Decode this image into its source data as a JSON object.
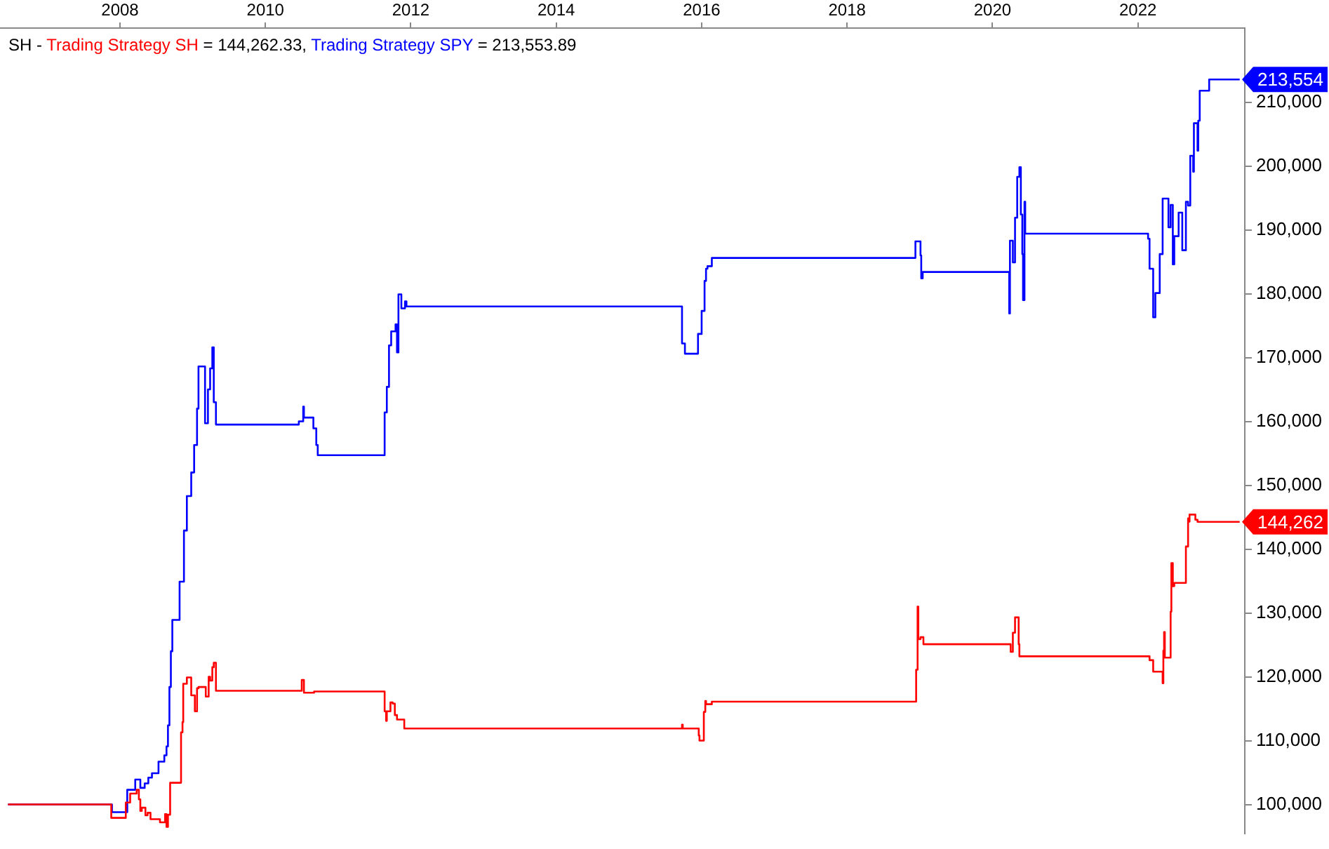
{
  "chart_data": {
    "type": "step",
    "title": "SH -",
    "legend": "top left",
    "grid": false,
    "annotations": [
      "= 144,262.33,",
      "= 213,553.89"
    ],
    "xlim": [
      2006.35,
      2023.47
    ],
    "xticks": [
      2008,
      2010,
      2012,
      2014,
      2016,
      2018,
      2020,
      2022
    ],
    "ylim": [
      95400,
      221600
    ],
    "yticks": [
      {
        "value": 100000,
        "label": "100,000"
      },
      {
        "value": 110000,
        "label": "110,000"
      },
      {
        "value": 120000,
        "label": "120,000"
      },
      {
        "value": 130000,
        "label": "130,000"
      },
      {
        "value": 140000,
        "label": "140,000"
      },
      {
        "value": 150000,
        "label": "150,000"
      },
      {
        "value": 160000,
        "label": "160,000"
      },
      {
        "value": 170000,
        "label": "170,000"
      },
      {
        "value": 180000,
        "label": "180,000"
      },
      {
        "value": 190000,
        "label": "190,000"
      },
      {
        "value": 200000,
        "label": "200,000"
      },
      {
        "value": 210000,
        "label": "210,000"
      }
    ],
    "series": [
      {
        "name": "Trading Strategy SH",
        "color": "#ff0000",
        "x": [
          2006.46,
          2007.88,
          2008.08,
          2008.14,
          2008.23,
          2008.26,
          2008.28,
          2008.3,
          2008.35,
          2008.38,
          2008.42,
          2008.55,
          2008.62,
          2008.64,
          2008.66,
          2008.69,
          2008.84,
          2008.86,
          2008.87,
          2008.92,
          2008.98,
          2009.03,
          2009.06,
          2009.08,
          2009.18,
          2009.22,
          2009.24,
          2009.27,
          2009.29,
          2009.32,
          2010.5,
          2010.53,
          2010.67,
          2011.64,
          2011.66,
          2011.67,
          2011.72,
          2011.75,
          2011.78,
          2011.81,
          2011.91,
          2015.73,
          2015.74,
          2015.96,
          2015.97,
          2016.03,
          2016.05,
          2016.06,
          2016.14,
          2018.95,
          2018.97,
          2018.98,
          2019.01,
          2019.05,
          2020.25,
          2020.28,
          2020.31,
          2020.36,
          2020.37,
          2022.16,
          2022.21,
          2022.34,
          2022.35,
          2022.36,
          2022.37,
          2022.45,
          2022.46,
          2022.48,
          2022.5,
          2022.66,
          2022.69,
          2022.7,
          2022.71,
          2022.79,
          2022.82,
          2023.4
        ],
        "values": [
          100000,
          97900,
          100300,
          101700,
          102300,
          100800,
          99000,
          99500,
          98300,
          98700,
          97700,
          97200,
          98500,
          96500,
          98400,
          103400,
          111300,
          112900,
          118900,
          119900,
          117100,
          114600,
          118200,
          118400,
          116900,
          120000,
          119400,
          121500,
          122200,
          117800,
          119500,
          117500,
          117700,
          114600,
          113100,
          114600,
          116000,
          115800,
          114000,
          113300,
          111900,
          112500,
          111900,
          110800,
          110000,
          114500,
          116200,
          115700,
          116100,
          121100,
          131000,
          125900,
          126200,
          125100,
          123900,
          126900,
          129300,
          125100,
          123200,
          122600,
          120800,
          119000,
          124100,
          127000,
          123000,
          130200,
          137800,
          134200,
          134700,
          140400,
          144800,
          144300,
          145400,
          144600,
          144262,
          144262
        ],
        "value_labels": [
          null,
          null,
          null,
          null,
          null,
          null,
          null,
          null,
          null,
          null,
          null,
          null,
          null,
          null,
          null,
          null,
          null,
          null,
          null,
          null,
          null,
          null,
          null,
          null,
          null,
          null,
          null,
          null,
          null,
          null,
          null,
          null,
          null,
          null,
          null,
          null,
          null,
          null,
          null,
          null,
          null,
          null,
          null,
          null,
          null,
          null,
          null,
          null,
          null,
          null,
          null,
          null,
          null,
          null,
          null,
          null,
          null,
          null,
          null,
          null,
          null,
          null,
          null,
          null,
          null,
          null,
          null,
          null,
          null,
          null,
          null,
          null,
          null,
          null,
          null,
          "144,262"
        ]
      },
      {
        "name": "Trading Strategy SPY",
        "color": "#0000ff",
        "x": [
          2006.46,
          2007.89,
          2008.1,
          2008.21,
          2008.28,
          2008.34,
          2008.39,
          2008.44,
          2008.53,
          2008.61,
          2008.64,
          2008.66,
          2008.68,
          2008.7,
          2008.72,
          2008.82,
          2008.88,
          2008.92,
          2008.98,
          2009.02,
          2009.06,
          2009.08,
          2009.17,
          2009.21,
          2009.24,
          2009.27,
          2009.29,
          2009.32,
          2010.46,
          2010.52,
          2010.53,
          2010.66,
          2010.7,
          2010.72,
          2011.64,
          2011.67,
          2011.7,
          2011.73,
          2011.79,
          2011.81,
          2011.83,
          2011.87,
          2011.92,
          2011.94,
          2015.73,
          2015.77,
          2015.95,
          2016.0,
          2016.04,
          2016.06,
          2016.08,
          2016.14,
          2018.94,
          2019.01,
          2019.02,
          2019.04,
          2020.23,
          2020.24,
          2020.28,
          2020.31,
          2020.34,
          2020.37,
          2020.39,
          2020.41,
          2020.42,
          2020.44,
          2020.45,
          2022.14,
          2022.16,
          2022.21,
          2022.24,
          2022.3,
          2022.34,
          2022.42,
          2022.45,
          2022.48,
          2022.5,
          2022.56,
          2022.61,
          2022.66,
          2022.69,
          2022.72,
          2022.76,
          2022.77,
          2022.82,
          2022.83,
          2022.85,
          2022.98,
          2023.4
        ],
        "values": [
          100000,
          98800,
          102300,
          103900,
          102600,
          103300,
          104200,
          104900,
          106700,
          107700,
          109100,
          112400,
          118400,
          124000,
          128900,
          134900,
          142900,
          148300,
          152000,
          156300,
          162000,
          168600,
          159700,
          165000,
          168300,
          171600,
          163000,
          159500,
          160000,
          162300,
          160600,
          158900,
          156300,
          154700,
          161400,
          165400,
          171900,
          174100,
          175200,
          170800,
          179900,
          177700,
          178800,
          178000,
          172200,
          170600,
          173700,
          177300,
          182000,
          183900,
          184300,
          185600,
          188200,
          186000,
          182400,
          183400,
          176900,
          188300,
          184900,
          191900,
          198300,
          199800,
          192400,
          186200,
          179000,
          194400,
          189400,
          188600,
          183900,
          176300,
          180100,
          186200,
          194900,
          190400,
          193900,
          184600,
          189000,
          192700,
          186800,
          194400,
          193800,
          201600,
          199100,
          206700,
          202400,
          207100,
          211800,
          213554,
          213554
        ],
        "value_labels": [
          null,
          null,
          null,
          null,
          null,
          null,
          null,
          null,
          null,
          null,
          null,
          null,
          null,
          null,
          null,
          null,
          null,
          null,
          null,
          null,
          null,
          null,
          null,
          null,
          null,
          null,
          null,
          null,
          null,
          null,
          null,
          null,
          null,
          null,
          null,
          null,
          null,
          null,
          null,
          null,
          null,
          null,
          null,
          null,
          null,
          null,
          null,
          null,
          null,
          null,
          null,
          null,
          null,
          null,
          null,
          null,
          null,
          null,
          null,
          null,
          null,
          null,
          null,
          null,
          null,
          null,
          null,
          null,
          null,
          null,
          null,
          null,
          null,
          null,
          null,
          null,
          null,
          null,
          null,
          null,
          null,
          null,
          null,
          null,
          null,
          null,
          null,
          null,
          "213,554"
        ]
      }
    ]
  }
}
